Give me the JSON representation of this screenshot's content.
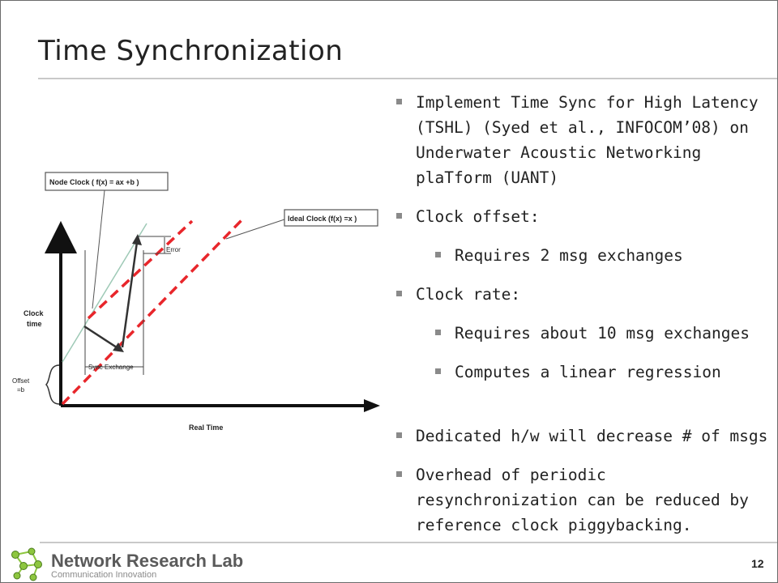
{
  "slide": {
    "title": "Time Synchronization",
    "page_number": "12"
  },
  "bullets": [
    {
      "text": "Implement Time Sync for High Latency (TSHL) (Syed et al., INFOCOM’08) on Underwater Acoustic Networking plaTform (UANT)",
      "level": 1
    },
    {
      "text": "Clock offset:",
      "level": 1
    },
    {
      "text": "Requires 2 msg exchanges",
      "level": 2
    },
    {
      "text": "Clock rate:",
      "level": 1
    },
    {
      "text": "Requires about  10 msg exchanges",
      "level": 2
    },
    {
      "text": "Computes a linear regression",
      "level": 2
    },
    {
      "text": "Dedicated h/w will decrease # of msgs",
      "level": 1
    },
    {
      "text": "Overhead of periodic resynchronization can be reduced by reference clock piggybacking.",
      "level": 1
    }
  ],
  "diagram": {
    "node_clock_label": "Node Clock ( f(x) = ax +b )",
    "ideal_clock_label": "Ideal Clock (f(x) =x )",
    "error_label": "Error",
    "clock_time_line1": "Clock",
    "clock_time_line2": "time",
    "offset_line1": "Offset",
    "offset_line2": "=b",
    "sync_exchange_label": "Sync Exchange",
    "real_time_label": "Real Time",
    "ideal_color": "#e8262b",
    "node_color": "#9ec9b6"
  },
  "footer": {
    "lab_name": "Network Research Lab",
    "tagline": "Communication Innovation",
    "logo_color": "#8dc63f"
  }
}
